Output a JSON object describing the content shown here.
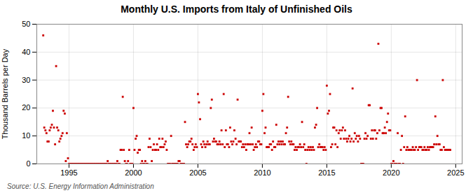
{
  "chart_data": {
    "type": "scatter",
    "title": "Monthly U.S. Imports from Italy of Unfinished Oils",
    "ylabel": "Thousand Barrels per Day",
    "source": "Source: U.S. Energy Information Administration",
    "color": "#cc0000",
    "marker": "square",
    "grid": true,
    "xlim": [
      1992.5,
      2025.5
    ],
    "ylim": [
      0,
      50
    ],
    "xticks": [
      1995,
      2000,
      2005,
      2010,
      2015,
      2020,
      2025
    ],
    "yticks": [
      0,
      10,
      20,
      30,
      40,
      50
    ],
    "x": [
      1993.0,
      1993.08,
      1993.17,
      1993.25,
      1993.33,
      1993.42,
      1993.5,
      1993.58,
      1993.67,
      1993.75,
      1993.83,
      1993.92,
      1994.0,
      1994.08,
      1994.17,
      1994.25,
      1994.33,
      1994.42,
      1994.5,
      1994.58,
      1994.67,
      1994.75,
      1994.83,
      1994.92,
      1995.0,
      1995.08,
      1995.17,
      1995.25,
      1995.33,
      1995.42,
      1995.5,
      1995.58,
      1995.67,
      1995.75,
      1995.83,
      1995.92,
      1996.0,
      1996.08,
      1996.17,
      1996.25,
      1996.33,
      1996.42,
      1996.5,
      1996.58,
      1996.67,
      1996.75,
      1996.83,
      1996.92,
      1997.0,
      1997.08,
      1997.17,
      1997.25,
      1997.33,
      1997.42,
      1997.5,
      1997.58,
      1997.67,
      1997.75,
      1997.83,
      1997.92,
      1998.0,
      1998.08,
      1998.17,
      1998.25,
      1998.33,
      1998.42,
      1998.5,
      1998.58,
      1998.67,
      1998.75,
      1998.83,
      1998.92,
      1999.0,
      1999.08,
      1999.17,
      1999.25,
      1999.33,
      1999.42,
      1999.5,
      1999.58,
      1999.67,
      1999.75,
      1999.83,
      1999.92,
      2000.0,
      2000.08,
      2000.17,
      2000.25,
      2000.33,
      2000.42,
      2000.5,
      2000.58,
      2000.67,
      2000.75,
      2000.83,
      2000.92,
      2001.0,
      2001.08,
      2001.17,
      2001.25,
      2001.33,
      2001.42,
      2001.5,
      2001.58,
      2001.67,
      2001.75,
      2001.83,
      2001.92,
      2002.0,
      2002.08,
      2002.17,
      2002.25,
      2002.33,
      2002.42,
      2002.5,
      2002.58,
      2002.67,
      2002.75,
      2002.83,
      2002.92,
      2003.0,
      2003.08,
      2003.17,
      2003.25,
      2003.33,
      2003.42,
      2003.5,
      2003.58,
      2003.67,
      2003.75,
      2003.83,
      2003.92,
      2004.0,
      2004.08,
      2004.17,
      2004.25,
      2004.33,
      2004.42,
      2004.5,
      2004.58,
      2004.67,
      2004.75,
      2004.83,
      2004.92,
      2005.0,
      2005.08,
      2005.17,
      2005.25,
      2005.33,
      2005.42,
      2005.5,
      2005.58,
      2005.67,
      2005.75,
      2005.83,
      2005.92,
      2006.0,
      2006.08,
      2006.17,
      2006.25,
      2006.33,
      2006.42,
      2006.5,
      2006.58,
      2006.67,
      2006.75,
      2006.83,
      2006.92,
      2007.0,
      2007.08,
      2007.17,
      2007.25,
      2007.33,
      2007.42,
      2007.5,
      2007.58,
      2007.67,
      2007.75,
      2007.83,
      2007.92,
      2008.0,
      2008.08,
      2008.17,
      2008.25,
      2008.33,
      2008.42,
      2008.5,
      2008.58,
      2008.67,
      2008.75,
      2008.83,
      2008.92,
      2009.0,
      2009.08,
      2009.17,
      2009.25,
      2009.33,
      2009.42,
      2009.5,
      2009.58,
      2009.67,
      2009.75,
      2009.83,
      2009.92,
      2010.0,
      2010.08,
      2010.17,
      2010.25,
      2010.33,
      2010.42,
      2010.5,
      2010.58,
      2010.67,
      2010.75,
      2010.83,
      2010.92,
      2011.0,
      2011.08,
      2011.17,
      2011.25,
      2011.33,
      2011.42,
      2011.5,
      2011.58,
      2011.67,
      2011.75,
      2011.83,
      2011.92,
      2012.0,
      2012.08,
      2012.17,
      2012.25,
      2012.33,
      2012.42,
      2012.5,
      2012.58,
      2012.67,
      2012.75,
      2012.83,
      2012.92,
      2013.0,
      2013.08,
      2013.17,
      2013.25,
      2013.33,
      2013.42,
      2013.5,
      2013.58,
      2013.67,
      2013.75,
      2013.83,
      2013.92,
      2014.0,
      2014.08,
      2014.17,
      2014.25,
      2014.33,
      2014.42,
      2014.5,
      2014.58,
      2014.67,
      2014.75,
      2014.83,
      2014.92,
      2015.0,
      2015.08,
      2015.17,
      2015.25,
      2015.33,
      2015.42,
      2015.5,
      2015.58,
      2015.67,
      2015.75,
      2015.83,
      2015.92,
      2016.0,
      2016.08,
      2016.17,
      2016.25,
      2016.33,
      2016.42,
      2016.5,
      2016.58,
      2016.67,
      2016.75,
      2016.83,
      2016.92,
      2017.0,
      2017.08,
      2017.17,
      2017.25,
      2017.33,
      2017.42,
      2017.5,
      2017.58,
      2017.67,
      2017.75,
      2017.83,
      2017.92,
      2018.0,
      2018.08,
      2018.17,
      2018.25,
      2018.33,
      2018.42,
      2018.5,
      2018.58,
      2018.67,
      2018.75,
      2018.83,
      2018.92,
      2019.0,
      2019.08,
      2019.17,
      2019.25,
      2019.33,
      2019.42,
      2019.5,
      2019.58,
      2019.67,
      2019.75,
      2019.83,
      2019.92,
      2020.0,
      2020.08,
      2020.17,
      2020.25,
      2020.33,
      2020.42,
      2020.5,
      2020.58,
      2020.67,
      2020.75,
      2020.83,
      2020.92,
      2021.0,
      2021.08,
      2021.17,
      2021.25,
      2021.33,
      2021.42,
      2021.5,
      2021.58,
      2021.67,
      2021.75,
      2021.83,
      2021.92,
      2022.0,
      2022.08,
      2022.17,
      2022.25,
      2022.33,
      2022.42,
      2022.5,
      2022.58,
      2022.67,
      2022.75,
      2022.83,
      2022.92,
      2023.0,
      2023.08,
      2023.17,
      2023.25,
      2023.33,
      2023.42,
      2023.5,
      2023.58,
      2023.67,
      2023.75,
      2023.83,
      2023.92,
      2024.0,
      2024.08,
      2024.17,
      2024.25,
      2024.33,
      2024.42,
      2024.5,
      2024.58
    ],
    "values": [
      46,
      13,
      12,
      11,
      8,
      8,
      12,
      13,
      14,
      19,
      13,
      7,
      35,
      13,
      12,
      8,
      9,
      10,
      11,
      19,
      18,
      1,
      11,
      2,
      0,
      0,
      0,
      0,
      0,
      0,
      0,
      0,
      0,
      0,
      0,
      0,
      0,
      0,
      0,
      0,
      0,
      0,
      0,
      0,
      0,
      0,
      0,
      0,
      0,
      0,
      0,
      0,
      0,
      0,
      0,
      0,
      0,
      0,
      0,
      0,
      1,
      0,
      0,
      0,
      0,
      0,
      0,
      0,
      0,
      1,
      0,
      0,
      5,
      5,
      24,
      5,
      1,
      0,
      0,
      1,
      5,
      0,
      0,
      0,
      20,
      5,
      9,
      10,
      4,
      5,
      5,
      0,
      1,
      0,
      0,
      1,
      0,
      0,
      6,
      9,
      6,
      1,
      5,
      7,
      5,
      5,
      7,
      5,
      9,
      6,
      6,
      9,
      6,
      7,
      8,
      5,
      0,
      0,
      0,
      10,
      0,
      0,
      0,
      0,
      0,
      0,
      1,
      1,
      0,
      0,
      0,
      0,
      15,
      7,
      6,
      7,
      8,
      8,
      9,
      7,
      5,
      6,
      7,
      6,
      25,
      22,
      16,
      7,
      6,
      8,
      7,
      6,
      7,
      8,
      7,
      7,
      20,
      23,
      8,
      9,
      8,
      8,
      7,
      7,
      8,
      7,
      12,
      7,
      25,
      6,
      12,
      7,
      7,
      6,
      13,
      8,
      7,
      8,
      12,
      9,
      7,
      23,
      8,
      8,
      8,
      6,
      7,
      6,
      7,
      5,
      7,
      7,
      11,
      7,
      13,
      7,
      5,
      6,
      7,
      6,
      8,
      8,
      7,
      7,
      19,
      25,
      11,
      13,
      6,
      6,
      6,
      7,
      7,
      5,
      8,
      6,
      6,
      14,
      7,
      8,
      7,
      8,
      7,
      8,
      7,
      7,
      11,
      13,
      24,
      8,
      7,
      8,
      7,
      7,
      5,
      6,
      5,
      6,
      6,
      7,
      6,
      15,
      6,
      7,
      5,
      0,
      5,
      6,
      5,
      6,
      5,
      6,
      5,
      13,
      14,
      20,
      6,
      7,
      6,
      6,
      6,
      5,
      6,
      5,
      28,
      18,
      19,
      25,
      6,
      7,
      13,
      13,
      7,
      12,
      6,
      11,
      12,
      9,
      12,
      13,
      9,
      12,
      9,
      8,
      9,
      10,
      8,
      9,
      27,
      8,
      11,
      9,
      10,
      8,
      10,
      9,
      0,
      0,
      0,
      9,
      11,
      9,
      10,
      21,
      21,
      9,
      12,
      9,
      12,
      12,
      9,
      11,
      43,
      12,
      20,
      20,
      11,
      11,
      13,
      11,
      15,
      18,
      12,
      12,
      0,
      0,
      1,
      0,
      0,
      0,
      11,
      0,
      0,
      5,
      10,
      0,
      6,
      17,
      5,
      6,
      5,
      5,
      5,
      5,
      6,
      5,
      5,
      6,
      30,
      5,
      6,
      6,
      6,
      5,
      5,
      6,
      5,
      5,
      6,
      5,
      6,
      6,
      6,
      6,
      7,
      17,
      7,
      10,
      7,
      7,
      5,
      5,
      30,
      6,
      5,
      5,
      5,
      5,
      5,
      5
    ]
  }
}
